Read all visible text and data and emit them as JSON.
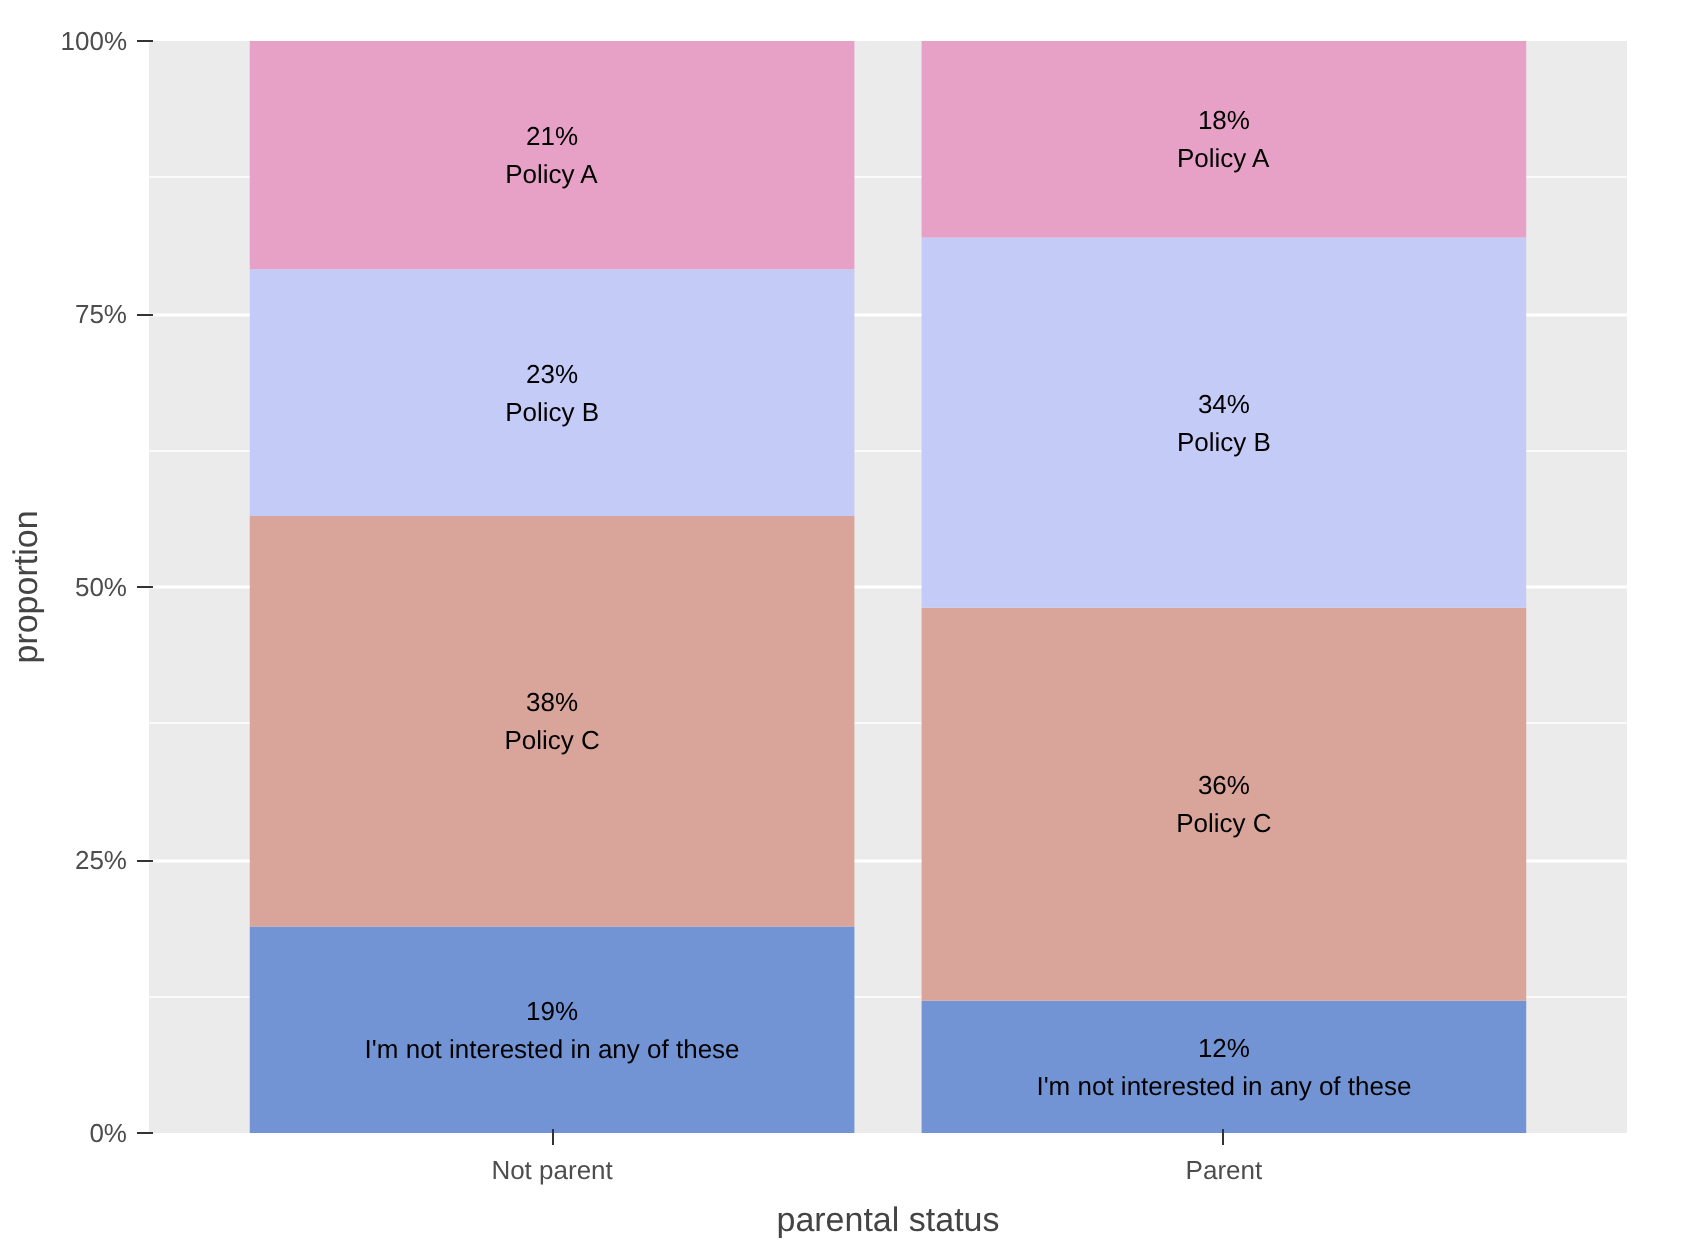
{
  "chart_data": {
    "type": "bar",
    "stacked": true,
    "xlabel": "parental status",
    "ylabel": "proportion",
    "categories": [
      "Not parent",
      "Parent"
    ],
    "ylim": [
      0,
      100
    ],
    "yticks": [
      {
        "value": 0,
        "label": "0%"
      },
      {
        "value": 25,
        "label": "25%"
      },
      {
        "value": 50,
        "label": "50%"
      },
      {
        "value": 75,
        "label": "75%"
      },
      {
        "value": 100,
        "label": "100%"
      }
    ],
    "grid": "y",
    "legend": false,
    "series": [
      {
        "name": "I'm not interested in any of these",
        "color": "#7394d4",
        "values": [
          18.9,
          12.1
        ],
        "value_labels": [
          "19%",
          "12%"
        ]
      },
      {
        "name": "Policy C",
        "color": "#d9a499",
        "values": [
          37.6,
          36.0
        ],
        "value_labels": [
          "38%",
          "36%"
        ]
      },
      {
        "name": "Policy B",
        "color": "#c5cbf7",
        "values": [
          22.6,
          33.9
        ],
        "value_labels": [
          "23%",
          "34%"
        ]
      },
      {
        "name": "Policy A",
        "color": "#e7a1c6",
        "values": [
          20.9,
          18.0
        ],
        "value_labels": [
          "21%",
          "18%"
        ]
      }
    ]
  }
}
